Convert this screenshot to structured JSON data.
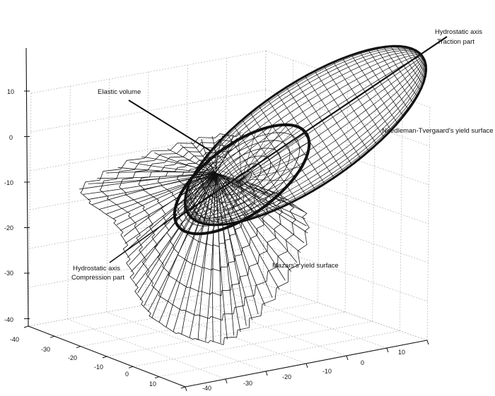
{
  "annotations": {
    "hydrostatic_traction_line1": "Hydrostatic axis",
    "hydrostatic_traction_line2": "Traction part",
    "elastic_volume": "Elastic volume",
    "needleman_tvergaard": "Needleman-Tvergaard's yield surface",
    "hydrostatic_compression_line1": "Hydrostatic axis",
    "hydrostatic_compression_line2": "Compression part",
    "mazars": "Mazars's yield surface"
  },
  "axes": {
    "z_ticks": [
      "10",
      "0",
      "-10",
      "-20",
      "-30",
      "-40"
    ],
    "left_ticks": [
      "-40",
      "-30",
      "-20",
      "-10",
      "0",
      "10"
    ],
    "right_ticks": [
      "-40",
      "-30",
      "-20",
      "-10",
      "0",
      "10"
    ]
  },
  "colors": {
    "line": "#111111",
    "grid": "#b5b5b5",
    "background": "#ffffff"
  }
}
